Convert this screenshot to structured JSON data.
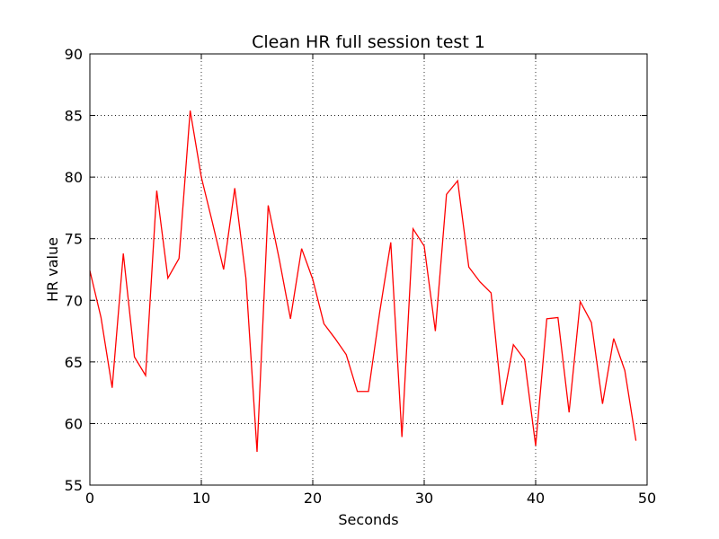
{
  "chart_data": {
    "type": "line",
    "title": "Clean HR full session test 1",
    "xlabel": "Seconds",
    "ylabel": "HR value",
    "xlim": [
      0,
      50
    ],
    "ylim": [
      55,
      90
    ],
    "xticks": [
      0,
      10,
      20,
      30,
      40,
      50
    ],
    "yticks": [
      55,
      60,
      65,
      70,
      75,
      80,
      85,
      90
    ],
    "grid": true,
    "grid_style": "dotted",
    "legend": null,
    "series": [
      {
        "color": "#ff0000",
        "x": [
          0,
          1,
          2,
          3,
          4,
          5,
          6,
          7,
          8,
          9,
          10,
          11,
          12,
          13,
          14,
          15,
          16,
          17,
          18,
          19,
          20,
          21,
          22,
          23,
          24,
          25,
          26,
          27,
          28,
          29,
          30,
          31,
          32,
          33,
          34,
          35,
          36,
          37,
          38,
          39,
          40,
          41,
          42,
          43,
          44,
          45,
          46,
          47,
          48,
          49
        ],
        "y": [
          72.4,
          68.6,
          62.9,
          73.8,
          65.4,
          63.9,
          78.9,
          71.8,
          73.4,
          85.4,
          80.0,
          76.3,
          72.5,
          79.1,
          71.8,
          57.7,
          77.7,
          73.3,
          68.5,
          74.2,
          71.7,
          68.1,
          66.9,
          65.6,
          62.6,
          62.6,
          69.0,
          74.7,
          58.9,
          75.8,
          74.4,
          67.5,
          78.6,
          79.7,
          72.7,
          71.5,
          70.6,
          61.5,
          66.4,
          65.2,
          58.2,
          68.5,
          68.6,
          60.9,
          69.9,
          68.2,
          61.6,
          66.9,
          64.3,
          58.6
        ]
      }
    ]
  }
}
